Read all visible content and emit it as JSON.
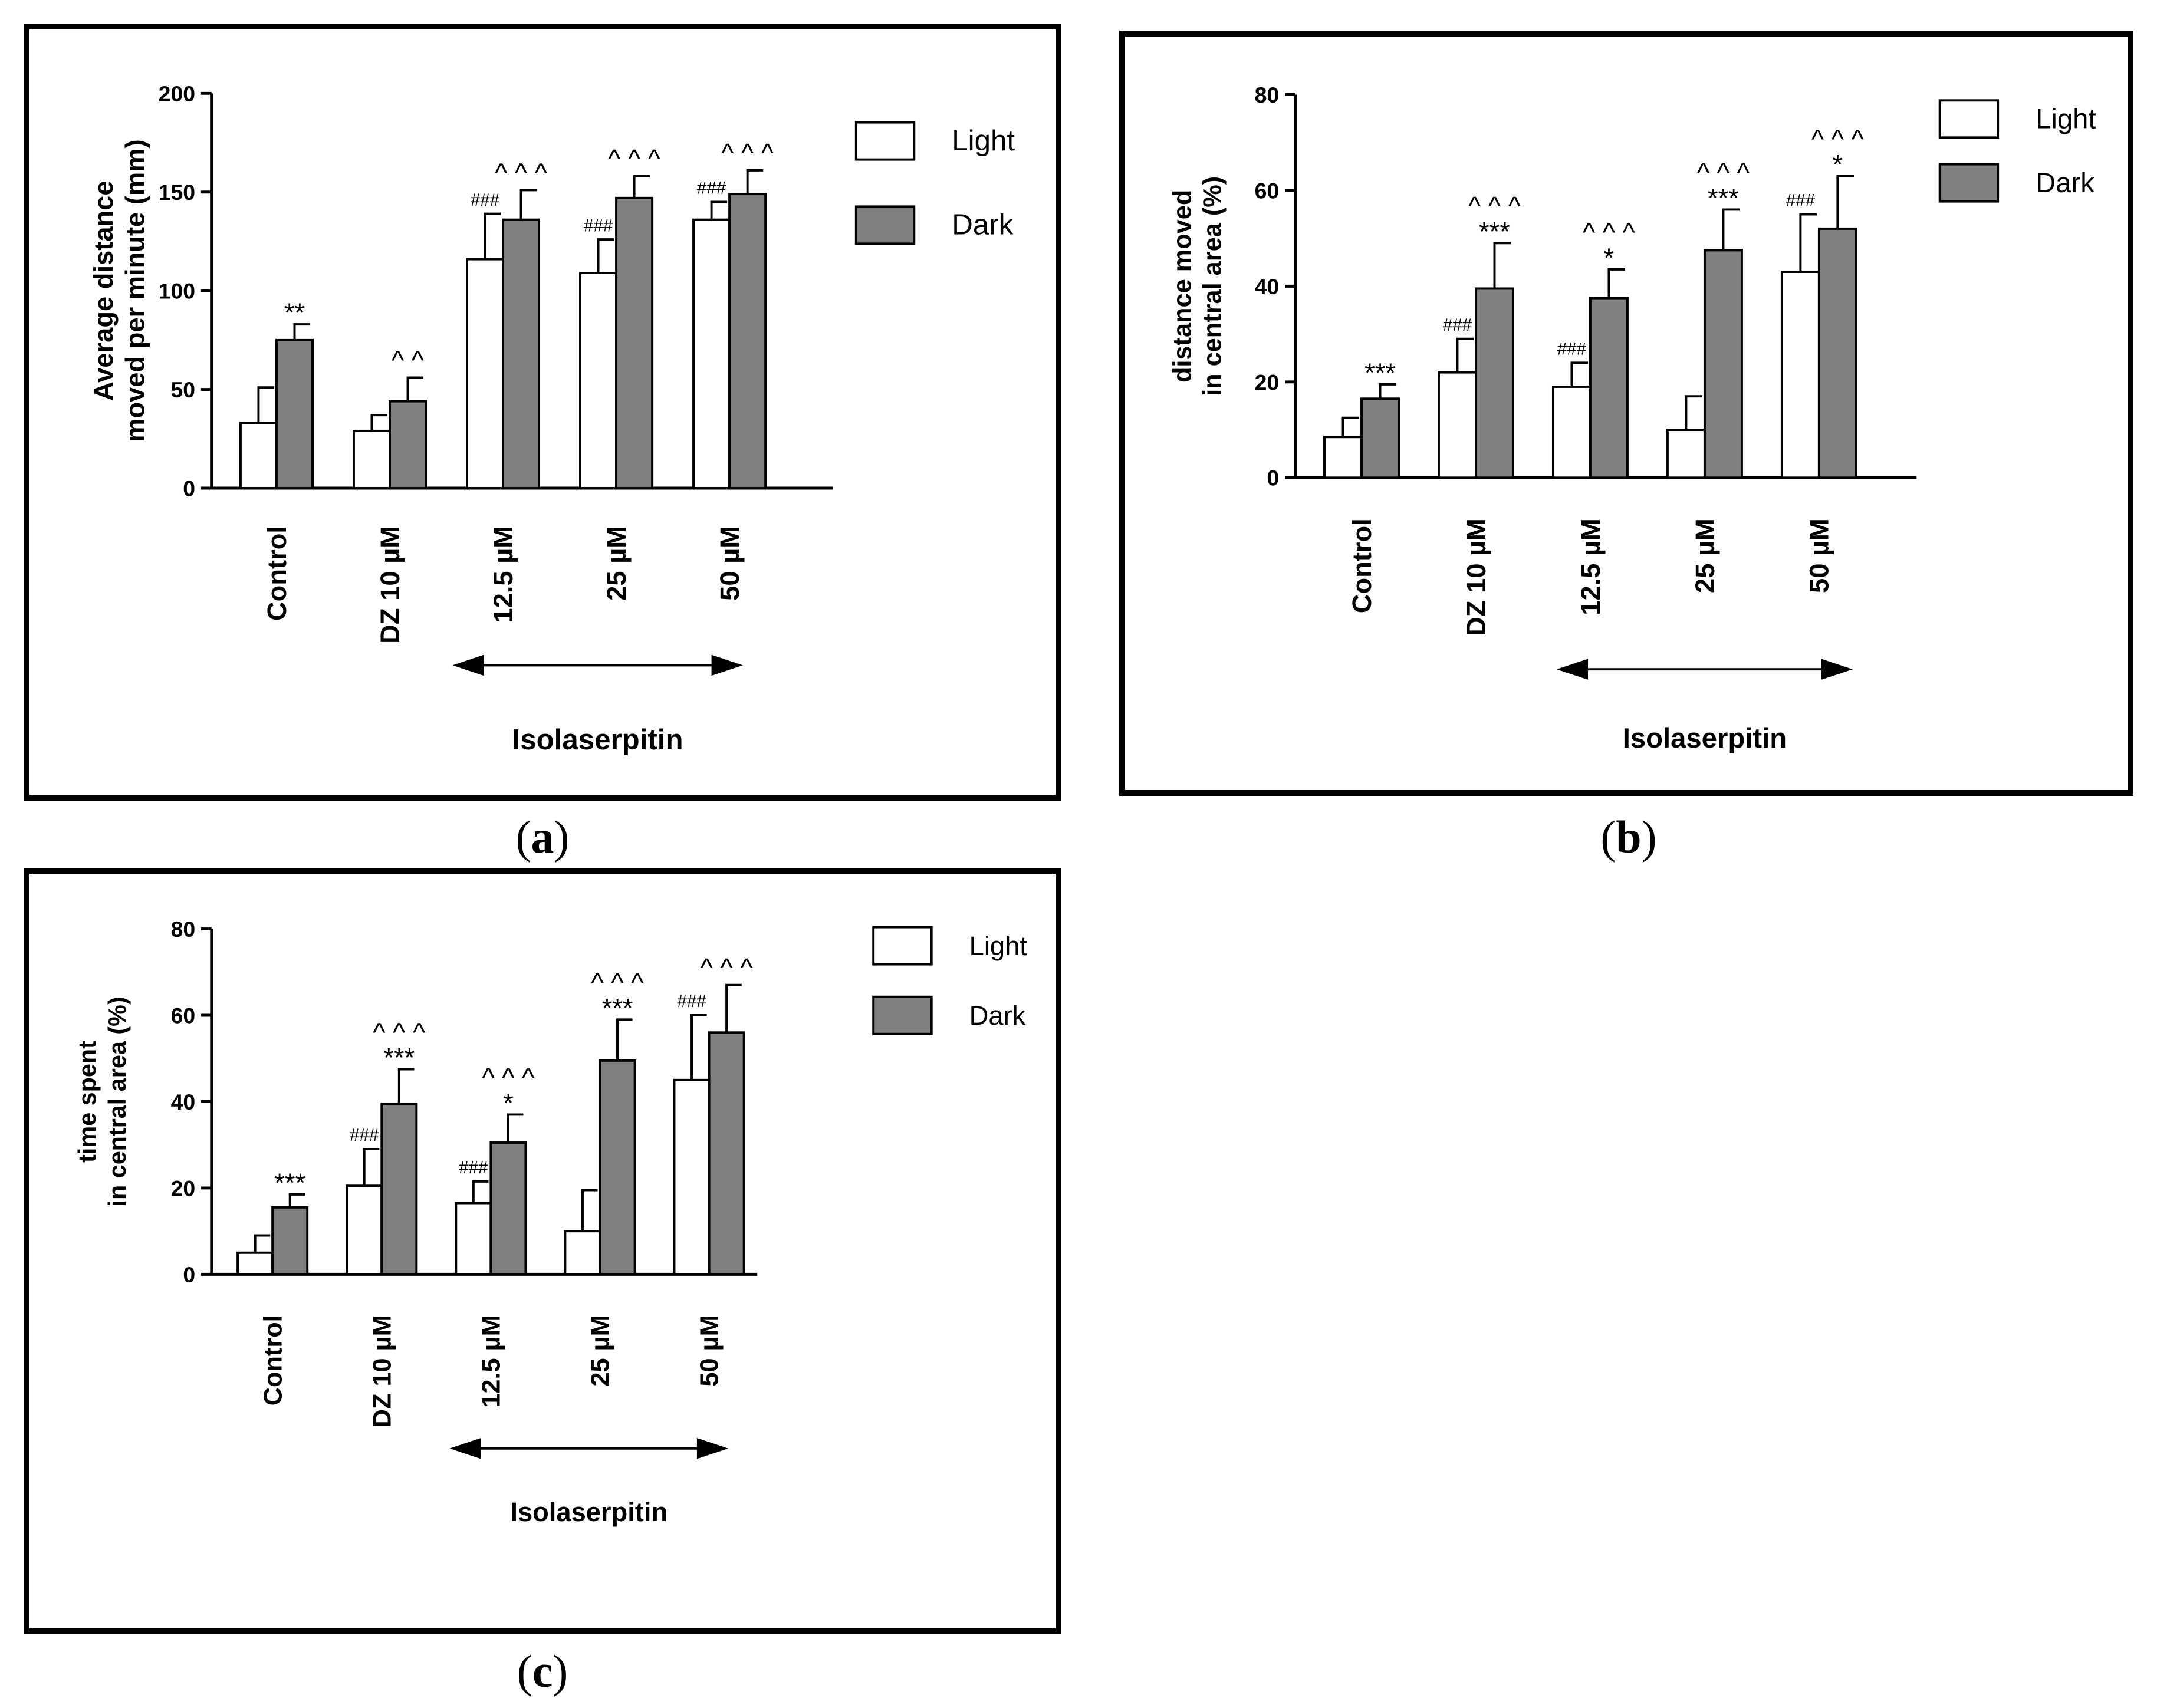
{
  "figure": {
    "captions": [
      "(a)",
      "(b)",
      "(c)"
    ]
  },
  "colors": {
    "light_fill": "#ffffff",
    "dark_fill": "#808080",
    "stroke": "#000000"
  },
  "chart_data": [
    {
      "type": "bar",
      "panel": "a",
      "ylabel_lines": [
        "Average distance",
        "moved per minute (mm)"
      ],
      "ylim": [
        0,
        200
      ],
      "yticks": [
        "0",
        "50",
        "100",
        "150",
        "200"
      ],
      "categories": [
        "Control",
        "DZ 10 µM",
        "12.5 µM",
        "25 µM",
        "50 µM"
      ],
      "group_label": "Isolaserpitin",
      "legend": [
        "Light",
        "Dark"
      ],
      "series": [
        {
          "name": "Light",
          "values": [
            33,
            29,
            116,
            109,
            136
          ],
          "errors": [
            18,
            8,
            23,
            17,
            9
          ],
          "annotations": [
            "",
            "",
            "###",
            "###",
            "###"
          ]
        },
        {
          "name": "Dark",
          "values": [
            75,
            44,
            136,
            147,
            149
          ],
          "errors": [
            8,
            12,
            15,
            11,
            12
          ],
          "annotations": [
            "**",
            "^ ^",
            "^ ^ ^",
            "^ ^ ^",
            "^ ^ ^"
          ]
        }
      ]
    },
    {
      "type": "bar",
      "panel": "b",
      "ylabel_lines": [
        "distance moved",
        "in central area (%)"
      ],
      "ylim": [
        0,
        80
      ],
      "yticks": [
        "0",
        "20",
        "40",
        "60",
        "80"
      ],
      "categories": [
        "Control",
        "DZ 10 µM",
        "12.5 µM",
        "25 µM",
        "50 µM"
      ],
      "group_label": "Isolaserpitin",
      "legend": [
        "Light",
        "Dark"
      ],
      "series": [
        {
          "name": "Light",
          "values": [
            8.5,
            22,
            19,
            10,
            43
          ],
          "errors": [
            4,
            7,
            5,
            7,
            12
          ],
          "annotations": [
            "",
            "###",
            "###",
            "",
            "###"
          ]
        },
        {
          "name": "Dark",
          "values": [
            16.5,
            39.5,
            37.5,
            47.5,
            52
          ],
          "errors": [
            3,
            9.5,
            6,
            8.5,
            11
          ],
          "annotations": [
            "***",
            "^ ^ ^|***",
            "^ ^ ^|*",
            "^ ^ ^|***",
            "^ ^ ^|*"
          ]
        }
      ]
    },
    {
      "type": "bar",
      "panel": "c",
      "ylabel_lines": [
        "time spent",
        "in central area (%)"
      ],
      "ylim": [
        0,
        80
      ],
      "yticks": [
        "0",
        "20",
        "40",
        "60",
        "80"
      ],
      "categories": [
        "Control",
        "DZ 10 µM",
        "12.5 µM",
        "25 µM",
        "50 µM"
      ],
      "group_label": "Isolaserpitin",
      "legend": [
        "Light",
        "Dark"
      ],
      "series": [
        {
          "name": "Light",
          "values": [
            5,
            20.5,
            16.5,
            10,
            45
          ],
          "errors": [
            4,
            8.5,
            5,
            9.5,
            15
          ],
          "annotations": [
            "",
            "###",
            "###",
            "",
            "###"
          ]
        },
        {
          "name": "Dark",
          "values": [
            15.5,
            39.5,
            30.5,
            49.5,
            56
          ],
          "errors": [
            3,
            8,
            6.5,
            9.5,
            11
          ],
          "annotations": [
            "***",
            "^ ^ ^|***",
            "^ ^ ^|*",
            "^ ^ ^|***",
            "^ ^ ^"
          ]
        }
      ]
    }
  ]
}
